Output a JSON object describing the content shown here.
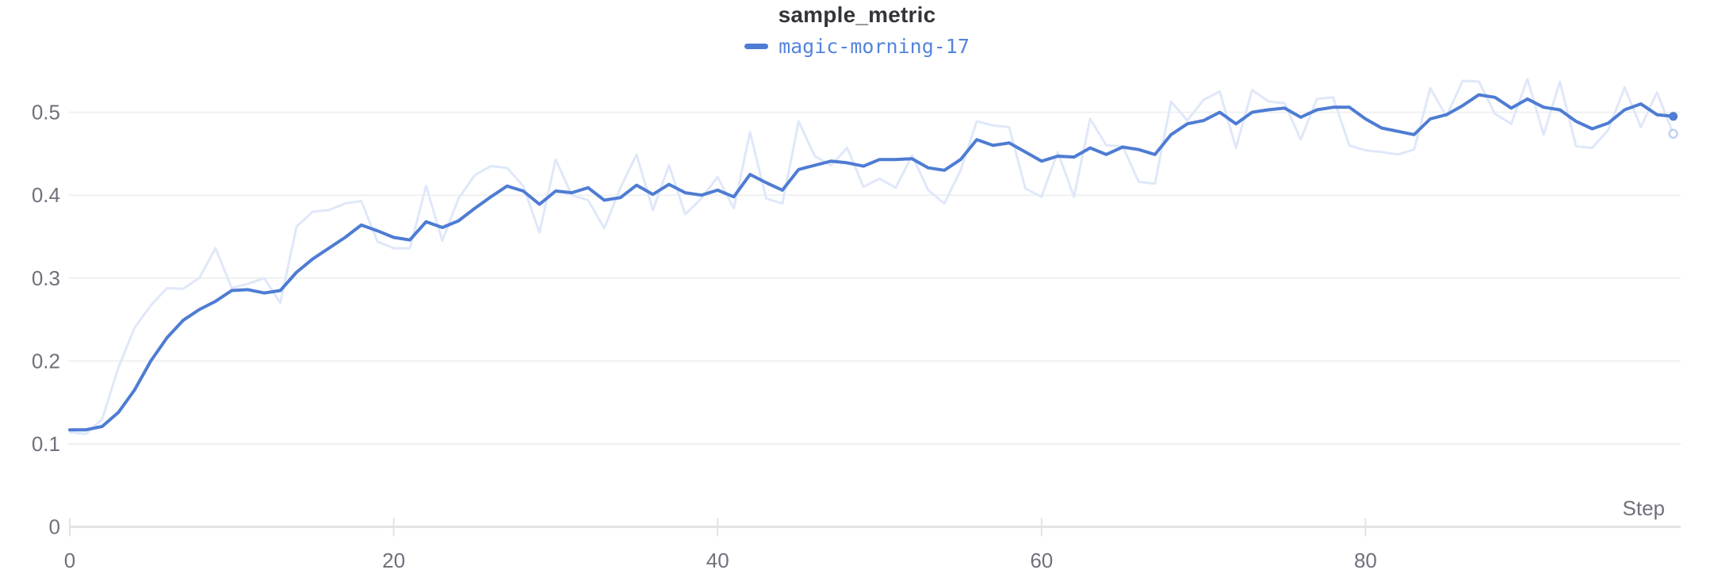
{
  "chart_data": {
    "type": "line",
    "title": "sample_metric",
    "xlabel": "Step",
    "ylabel": "",
    "x_range": [
      0,
      99
    ],
    "x_ticks": [
      0,
      20,
      40,
      60,
      80
    ],
    "y_ticks": [
      0,
      0.1,
      0.2,
      0.3,
      0.4,
      0.5
    ],
    "ylim": [
      0,
      0.55
    ],
    "grid": "horizontal",
    "legend_position": "top-center",
    "legend": [
      {
        "label": "magic-morning-17",
        "color": "#4e7cd3"
      }
    ],
    "series": [
      {
        "name": "magic-morning-17",
        "role": "original",
        "color": "#dfe8f9",
        "line_width": 3,
        "values": [
          0.114,
          0.112,
          0.13,
          0.192,
          0.24,
          0.267,
          0.288,
          0.287,
          0.3,
          0.336,
          0.288,
          0.293,
          0.3,
          0.27,
          0.362,
          0.38,
          0.382,
          0.39,
          0.393,
          0.344,
          0.336,
          0.336,
          0.411,
          0.345,
          0.396,
          0.424,
          0.435,
          0.433,
          0.411,
          0.355,
          0.443,
          0.4,
          0.394,
          0.36,
          0.409,
          0.449,
          0.382,
          0.436,
          0.377,
          0.396,
          0.422,
          0.384,
          0.476,
          0.396,
          0.39,
          0.489,
          0.447,
          0.436,
          0.457,
          0.41,
          0.42,
          0.409,
          0.448,
          0.406,
          0.39,
          0.43,
          0.489,
          0.484,
          0.482,
          0.408,
          0.398,
          0.452,
          0.398,
          0.492,
          0.46,
          0.459,
          0.416,
          0.414,
          0.513,
          0.49,
          0.515,
          0.525,
          0.457,
          0.527,
          0.513,
          0.511,
          0.467,
          0.516,
          0.518,
          0.46,
          0.454,
          0.452,
          0.449,
          0.455,
          0.529,
          0.495,
          0.538,
          0.537,
          0.498,
          0.486,
          0.54,
          0.473,
          0.537,
          0.459,
          0.457,
          0.479,
          0.53,
          0.482,
          0.524,
          0.474
        ]
      },
      {
        "name": "magic-morning-17 (smoothed)",
        "role": "smoothed",
        "color": "#4e7cd3",
        "line_width": 4,
        "values": [
          0.117,
          0.117,
          0.121,
          0.138,
          0.165,
          0.2,
          0.228,
          0.249,
          0.262,
          0.272,
          0.285,
          0.286,
          0.282,
          0.285,
          0.307,
          0.323,
          0.336,
          0.349,
          0.364,
          0.357,
          0.349,
          0.346,
          0.368,
          0.361,
          0.369,
          0.384,
          0.398,
          0.411,
          0.405,
          0.389,
          0.405,
          0.403,
          0.409,
          0.394,
          0.397,
          0.412,
          0.401,
          0.413,
          0.403,
          0.4,
          0.406,
          0.398,
          0.425,
          0.415,
          0.406,
          0.431,
          0.436,
          0.441,
          0.439,
          0.435,
          0.443,
          0.443,
          0.444,
          0.433,
          0.43,
          0.443,
          0.467,
          0.46,
          0.463,
          0.452,
          0.441,
          0.447,
          0.446,
          0.457,
          0.449,
          0.458,
          0.455,
          0.449,
          0.473,
          0.486,
          0.49,
          0.5,
          0.486,
          0.5,
          0.503,
          0.505,
          0.494,
          0.503,
          0.506,
          0.506,
          0.492,
          0.481,
          0.477,
          0.473,
          0.492,
          0.497,
          0.508,
          0.521,
          0.518,
          0.505,
          0.516,
          0.506,
          0.503,
          0.489,
          0.48,
          0.487,
          0.503,
          0.51,
          0.497,
          0.495
        ]
      }
    ],
    "end_markers": [
      {
        "series_role": "smoothed",
        "x": 99,
        "value": 0.495,
        "style": "filled-dot"
      },
      {
        "series_role": "original",
        "x": 99,
        "value": 0.474,
        "style": "hollow-dot"
      }
    ]
  },
  "colors": {
    "accent": "#4e7cd3",
    "raw_line": "#dfe8f9",
    "grid": "#f0f0f1",
    "axis": "#e3e3e7",
    "tick_label": "#70707c",
    "title_color": "#33353b",
    "legend_text": "#5584dc",
    "background": "#ffffff"
  }
}
